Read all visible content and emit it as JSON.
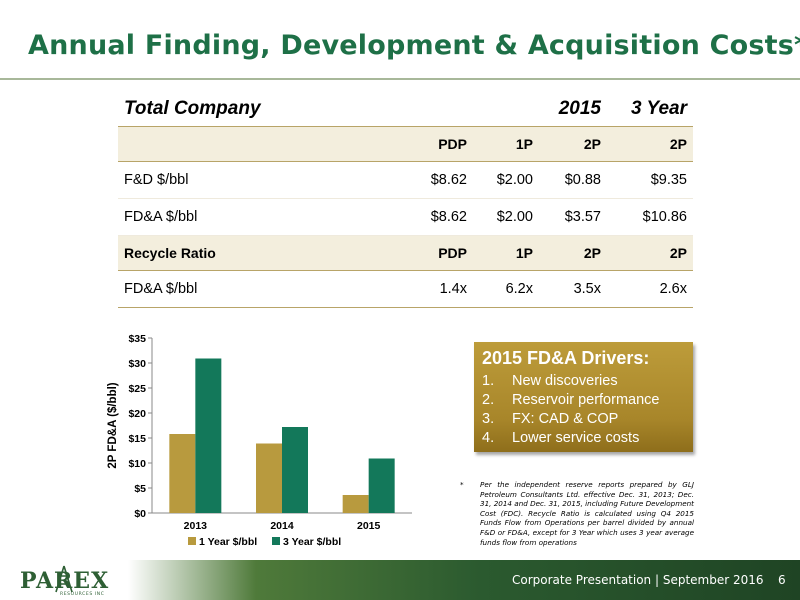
{
  "slide": {
    "title": "Annual Finding, Development & Acquisition Costs*",
    "page_number": "6",
    "footer_text": "Corporate Presentation | September 2016"
  },
  "table": {
    "header": {
      "label": "Total Company",
      "year_2015": "2015",
      "three_year": "3 Year"
    },
    "reserve_band": {
      "label": "",
      "cols": [
        "PDP",
        "1P",
        "2P",
        "2P"
      ]
    },
    "rows": [
      {
        "label": "F&D $/bbl",
        "values": [
          "$8.62",
          "$2.00",
          "$0.88",
          "$9.35"
        ]
      },
      {
        "label": "FD&A $/bbl",
        "values": [
          "$8.62",
          "$2.00",
          "$3.57",
          "$10.86"
        ]
      }
    ],
    "recycle_band": {
      "label": "Recycle Ratio",
      "cols": [
        "PDP",
        "1P",
        "2P",
        "2P"
      ]
    },
    "recycle_rows": [
      {
        "label": "FD&A $/bbl",
        "values": [
          "1.4x",
          "6.2x",
          "3.5x",
          "2.6x"
        ]
      }
    ]
  },
  "drivers": {
    "heading": "2015 FD&A Drivers:",
    "items": [
      {
        "num": "1.",
        "text": "New discoveries"
      },
      {
        "num": "2.",
        "text": "Reservoir performance"
      },
      {
        "num": "3.",
        "text": "FX: CAD & COP"
      },
      {
        "num": "4.",
        "text": "Lower service costs"
      }
    ]
  },
  "footnote": {
    "marker": "*",
    "text": "Per the independent reserve reports prepared by GLJ Petroleum Consultants Ltd. effective Dec. 31, 2013; Dec. 31, 2014 and Dec. 31, 2015, including Future Development Cost (FDC). Recycle Ratio is calculated using Q4 2015 Funds Flow from Operations per barrel divided by annual F&D or FD&A, except for 3 Year which uses 3 year average funds flow from operations"
  },
  "logo": {
    "word": "PAREX",
    "sub": "RESOURCES INC"
  },
  "colors": {
    "title_green": "#1e7047",
    "gold": "#b89a3e",
    "teal": "#13785a",
    "band_bg": "#f3eedd"
  },
  "chart_data": {
    "type": "bar",
    "categories": [
      "2013",
      "2014",
      "2015"
    ],
    "series": [
      {
        "name": "1 Year $/bbl",
        "values": [
          15.8,
          13.9,
          3.6
        ],
        "color": "#b89a3e"
      },
      {
        "name": "3 Year $/bbl",
        "values": [
          30.9,
          17.2,
          10.9
        ],
        "color": "#13785a"
      }
    ],
    "ylabel": "2P FD&A ($/bbl)",
    "xlabel": "",
    "ylim": [
      0,
      35
    ],
    "yticks": [
      "$0",
      "$5",
      "$10",
      "$15",
      "$20",
      "$25",
      "$30",
      "$35"
    ],
    "grid": false,
    "legend_position": "bottom"
  }
}
